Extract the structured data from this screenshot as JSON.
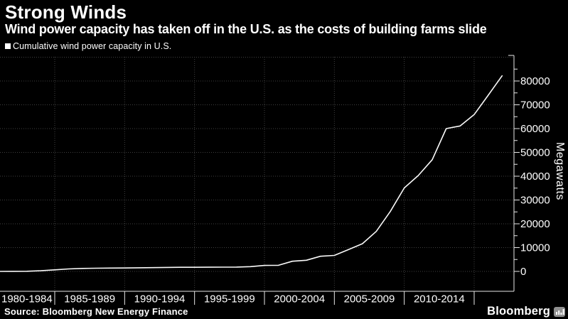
{
  "header": {
    "title": "Strong Winds",
    "subtitle": "Wind power capacity has taken off in the U.S. as the costs of building farms slide"
  },
  "legend": {
    "label": "Cumulative wind power capacity in U.S."
  },
  "footer": {
    "source": "Source: Bloomberg New Energy Finance",
    "brand": "Bloomberg"
  },
  "colors": {
    "background": "#000000",
    "text": "#ffffff",
    "line": "#fafafa",
    "grid": "#404040",
    "axis": "#e8e8e8"
  },
  "chart_data": {
    "type": "line",
    "title": "Cumulative wind power capacity in U.S.",
    "xlabel": "",
    "ylabel": "Megawatts",
    "legend_position": "top-left",
    "grid": "dotted",
    "x": [
      1980,
      1981,
      1982,
      1983,
      1984,
      1985,
      1986,
      1987,
      1988,
      1989,
      1990,
      1991,
      1992,
      1993,
      1994,
      1995,
      1996,
      1997,
      1998,
      1999,
      2000,
      2001,
      2002,
      2003,
      2004,
      2005,
      2006,
      2007,
      2008,
      2009,
      2010,
      2011,
      2012,
      2013,
      2014,
      2015,
      2016
    ],
    "values": [
      10,
      25,
      70,
      260,
      660,
      1040,
      1265,
      1333,
      1395,
      1438,
      1525,
      1595,
      1680,
      1720,
      1745,
      1770,
      1795,
      1820,
      2000,
      2500,
      2578,
      4275,
      4685,
      6372,
      6725,
      9149,
      11603,
      16819,
      25170,
      35086,
      40283,
      46919,
      60007,
      61110,
      65877,
      73992,
      82184
    ],
    "x_tick_labels": [
      "1980-1984",
      "1985-1989",
      "1990-1994",
      "1995-1999",
      "2000-2004",
      "2005-2009",
      "2010-2014"
    ],
    "x_boundaries": [
      1985,
      1990,
      1995,
      2000,
      2005,
      2010,
      2015
    ],
    "y_ticks": [
      0,
      10000,
      20000,
      30000,
      40000,
      50000,
      60000,
      70000,
      80000
    ],
    "y_minor_step": 5000,
    "ylim": [
      0,
      90000
    ]
  }
}
